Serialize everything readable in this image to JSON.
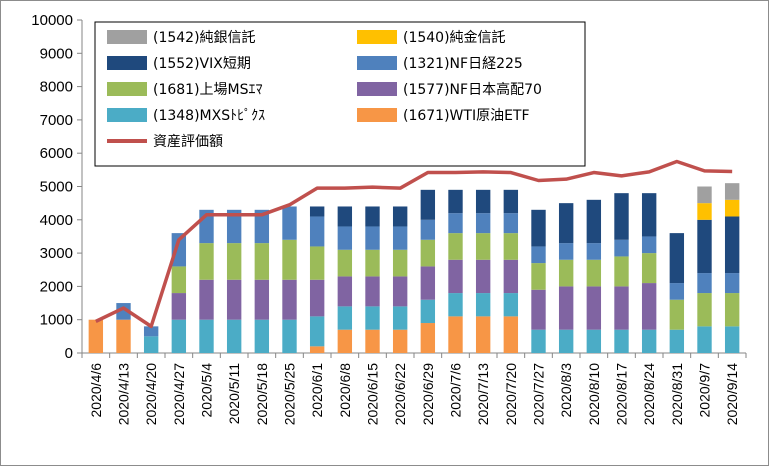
{
  "chart_data": {
    "type": "bar",
    "stacked": true,
    "ylim": [
      0,
      10000
    ],
    "yticks": [
      0,
      1000,
      2000,
      3000,
      4000,
      5000,
      6000,
      7000,
      8000,
      9000,
      10000
    ],
    "grid": false,
    "legend_position": "top-left",
    "categories": [
      "2020/4/6",
      "2020/4/13",
      "2020/4/20",
      "2020/4/27",
      "2020/5/4",
      "2020/5/11",
      "2020/5/18",
      "2020/5/25",
      "2020/6/1",
      "2020/6/8",
      "2020/6/15",
      "2020/6/22",
      "2020/6/29",
      "2020/7/6",
      "2020/7/13",
      "2020/7/20",
      "2020/7/27",
      "2020/8/3",
      "2020/8/10",
      "2020/8/17",
      "2020/8/24",
      "2020/8/31",
      "2020/9/7",
      "2020/9/14"
    ],
    "series": [
      {
        "name": "(1671)WTI原油ETF",
        "color": "#f79646",
        "values": [
          1000,
          1000,
          0,
          0,
          0,
          0,
          0,
          0,
          200,
          700,
          700,
          700,
          900,
          1100,
          1100,
          1100,
          0,
          0,
          0,
          0,
          0,
          0,
          0,
          0
        ]
      },
      {
        "name": "(1348)MXSﾄﾋﾟｸｽ",
        "color": "#4bacc6",
        "values": [
          0,
          0,
          500,
          1000,
          1000,
          1000,
          1000,
          1000,
          900,
          700,
          700,
          700,
          700,
          700,
          700,
          700,
          700,
          700,
          700,
          700,
          700,
          700,
          800,
          800
        ]
      },
      {
        "name": "(1577)NF日本高配70",
        "color": "#8064a2",
        "values": [
          0,
          0,
          0,
          800,
          1200,
          1200,
          1200,
          1200,
          1100,
          900,
          900,
          900,
          1000,
          1000,
          1000,
          1000,
          1200,
          1300,
          1300,
          1300,
          1400,
          0,
          0,
          0
        ]
      },
      {
        "name": "(1681)上場MSｴﾏ",
        "color": "#9bbb59",
        "values": [
          0,
          0,
          0,
          800,
          1100,
          1100,
          1100,
          1200,
          1000,
          800,
          800,
          800,
          800,
          800,
          800,
          800,
          800,
          800,
          800,
          900,
          900,
          900,
          1000,
          1000
        ]
      },
      {
        "name": "(1321)NF日経225",
        "color": "#4f81bd",
        "values": [
          0,
          500,
          300,
          1000,
          1000,
          1000,
          1000,
          1000,
          900,
          700,
          700,
          700,
          600,
          600,
          600,
          600,
          500,
          500,
          500,
          500,
          500,
          500,
          600,
          600
        ]
      },
      {
        "name": "(1552)VIX短期",
        "color": "#1f497d",
        "values": [
          0,
          0,
          0,
          0,
          0,
          0,
          0,
          0,
          300,
          600,
          600,
          600,
          900,
          700,
          700,
          700,
          1100,
          1200,
          1300,
          1400,
          1300,
          1500,
          1600,
          1700
        ]
      },
      {
        "name": "(1540)純金信託",
        "color": "#ffc000",
        "values": [
          0,
          0,
          0,
          0,
          0,
          0,
          0,
          0,
          0,
          0,
          0,
          0,
          0,
          0,
          0,
          0,
          0,
          0,
          0,
          0,
          0,
          0,
          500,
          500
        ]
      },
      {
        "name": "(1542)純銀信託",
        "color": "#a0a0a0",
        "values": [
          0,
          0,
          0,
          0,
          0,
          0,
          0,
          0,
          0,
          0,
          0,
          0,
          0,
          0,
          0,
          0,
          0,
          0,
          0,
          0,
          0,
          0,
          500,
          500
        ]
      }
    ],
    "line": {
      "name": "資産評価額",
      "color": "#c0504d",
      "values": [
        950,
        1350,
        800,
        3400,
        4150,
        4150,
        4150,
        4450,
        4950,
        4950,
        4980,
        4950,
        5420,
        5420,
        5440,
        5420,
        5180,
        5220,
        5420,
        5320,
        5440,
        5750,
        5470,
        5450
      ]
    },
    "legend_order": [
      "(1542)純銀信託",
      "(1540)純金信託",
      "(1552)VIX短期",
      "(1321)NF日経225",
      "(1681)上場MSｴﾏ",
      "(1577)NF日本高配70",
      "(1348)MXSﾄﾋﾟｸｽ",
      "(1671)WTI原油ETF",
      "資産評価額"
    ]
  }
}
